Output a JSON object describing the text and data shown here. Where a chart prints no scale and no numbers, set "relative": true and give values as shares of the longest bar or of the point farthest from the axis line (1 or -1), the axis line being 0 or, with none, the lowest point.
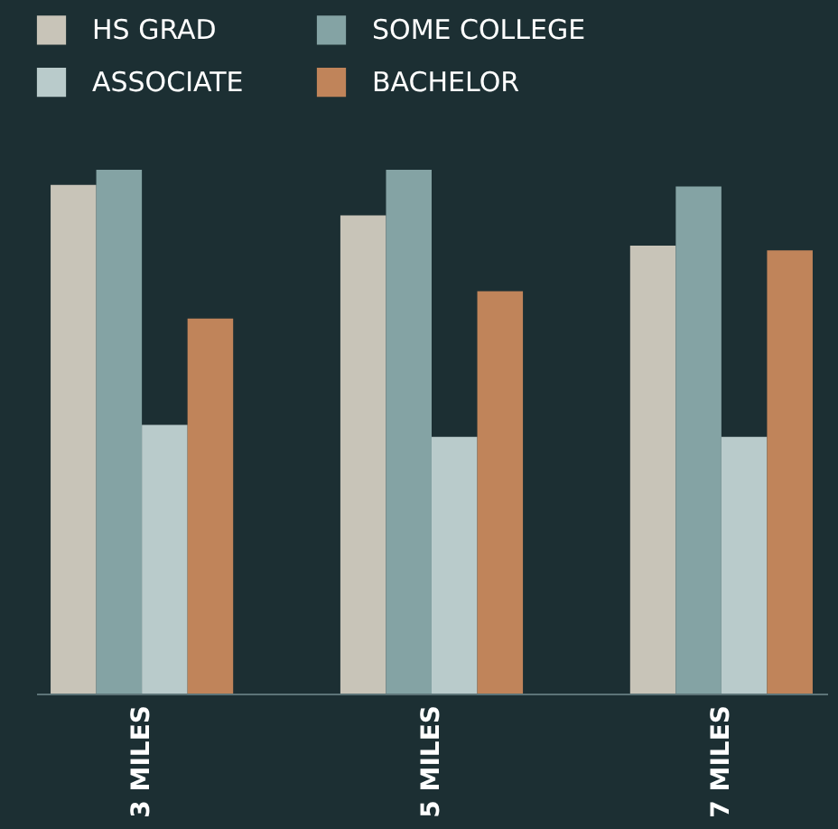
{
  "chart_data": {
    "type": "bar",
    "relative": true,
    "categories": [
      "3 MILES",
      "5 MILES",
      "7 MILES"
    ],
    "series": [
      {
        "name": "HS GRAD",
        "color": "#c8c4b8",
        "values": [
          0.971,
          0.913,
          0.855
        ]
      },
      {
        "name": "SOME COLLEGE",
        "color": "#84a3a4",
        "values": [
          1,
          1,
          0.968
        ]
      },
      {
        "name": "ASSOCIATE",
        "color": "#b9cbcb",
        "values": [
          0.513,
          0.49,
          0.49
        ]
      },
      {
        "name": "BACHELOR",
        "color": "#c0845a",
        "values": [
          0.716,
          0.768,
          0.846
        ]
      }
    ],
    "legend": "top left",
    "grid": false
  }
}
